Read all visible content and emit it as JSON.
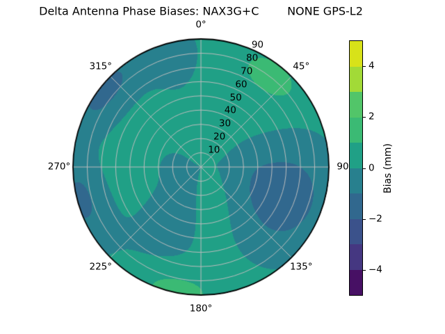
{
  "chart_data": {
    "type": "heatmap",
    "subtype": "polar-contourf",
    "title": "Delta Antenna Phase Biases: NAX3G+C        NONE GPS-L2",
    "projection": "polar",
    "theta_zero": "top",
    "theta_direction": "clockwise",
    "theta_tick_labels": [
      {
        "angle": 0,
        "label": "0°"
      },
      {
        "angle": 45,
        "label": "45°"
      },
      {
        "angle": 90,
        "label": "90"
      },
      {
        "angle": 135,
        "label": "135°"
      },
      {
        "angle": 180,
        "label": "180°"
      },
      {
        "angle": 225,
        "label": "225°"
      },
      {
        "angle": 270,
        "label": "270°"
      },
      {
        "angle": 315,
        "label": "315°"
      }
    ],
    "r_ticks": [
      10,
      20,
      30,
      40,
      50,
      60,
      70,
      80,
      90
    ],
    "r_max": 90,
    "r_label_angle": 22.5,
    "grid": true,
    "grid_color": "#bdbdbd",
    "spine_color": "#000000",
    "colorbar": {
      "label": "Bias (mm)",
      "range": [
        -5,
        5
      ],
      "levels": [
        -5,
        -4,
        -3,
        -2,
        -1,
        0,
        1,
        2,
        3,
        4,
        5
      ],
      "ticks": [
        {
          "value": 4,
          "label": "4"
        },
        {
          "value": 2,
          "label": "2"
        },
        {
          "value": 0,
          "label": "0"
        },
        {
          "value": -2,
          "label": "−2"
        },
        {
          "value": -4,
          "label": "−4"
        }
      ],
      "palette_bottom_to_top": [
        "#471064",
        "#453781",
        "#3b528b",
        "#31688e",
        "#28808e",
        "#20a086",
        "#3bba74",
        "#52c569",
        "#a2da37",
        "#d8e219"
      ]
    },
    "field": {
      "comment": "bias(theta,r) in mm = base + sum of gaussian anomalies; theta deg clockwise from north, r in 0..90",
      "base_bias": 0.5,
      "gaussians": [
        {
          "theta": 110,
          "r": 60,
          "amp": -2.15,
          "sigma_theta": 26,
          "sigma_r": 26
        },
        {
          "theta": 75,
          "r": 28,
          "amp": -0.55,
          "sigma_theta": 18,
          "sigma_r": 16
        },
        {
          "theta": 308,
          "r": 87,
          "amp": -1.75,
          "sigma_theta": 17,
          "sigma_r": 14
        },
        {
          "theta": 255,
          "r": 88,
          "amp": -1.65,
          "sigma_theta": 15,
          "sigma_r": 13
        },
        {
          "theta": 272,
          "r": 12,
          "amp": -0.7,
          "sigma_theta": 38,
          "sigma_r": 20
        },
        {
          "theta": 210,
          "r": 45,
          "amp": -0.85,
          "sigma_theta": 22,
          "sigma_r": 35
        },
        {
          "theta": 345,
          "r": 80,
          "amp": -0.8,
          "sigma_theta": 13,
          "sigma_r": 22
        },
        {
          "theta": 38,
          "r": 80,
          "amp": 1.05,
          "sigma_theta": 11,
          "sigma_r": 9
        },
        {
          "theta": 193,
          "r": 88,
          "amp": 1.1,
          "sigma_theta": 14,
          "sigma_r": 11
        }
      ]
    }
  }
}
